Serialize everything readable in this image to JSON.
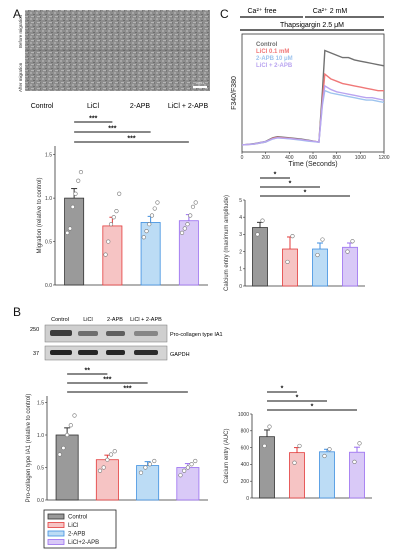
{
  "panels": {
    "a": "A",
    "b": "B",
    "c": "C"
  },
  "micrograph": {
    "row_labels": [
      "Before migration",
      "After migration"
    ],
    "scale_bar": "100 μm",
    "group_labels": [
      "Control",
      "LiCl",
      "2-APB",
      "LiCl + 2-APB"
    ]
  },
  "western": {
    "lane_labels": [
      "Control",
      "LiCl",
      "2-APB",
      "LiCl + 2-APB"
    ],
    "markers": [
      "250",
      "37"
    ],
    "bands": [
      "Pro-collagen type IA1",
      "GAPDH"
    ]
  },
  "trace": {
    "conditions": [
      "Ca²⁺ free",
      "Ca²⁺ 2 mM"
    ],
    "treatment": "Thapsigargin 2.5 μM",
    "colors": {
      "Control": "#707070",
      "LiCl": "#f07878",
      "2-APB": "#9ec4ee",
      "LiCl+2-APB": "#b9a4f0"
    }
  },
  "legend": {
    "items": [
      {
        "label": "Control",
        "color": "#9a9a9a"
      },
      {
        "label": "LiCl",
        "color": "#f6c4c4"
      },
      {
        "label": "2-APB",
        "color": "#bcdcf5"
      },
      {
        "label": "LiCl+2-APB",
        "color": "#d9c9f7"
      }
    ]
  },
  "chart_data": [
    {
      "type": "line",
      "panel": "C",
      "xlabel": "Time (Seconds)",
      "ylabel": "F340/F380",
      "x_ticks": [
        0,
        200,
        400,
        600,
        800,
        1000,
        1200
      ],
      "xlim": [
        0,
        1200
      ],
      "ylim": [
        0,
        5
      ],
      "series": [
        {
          "name": "Control",
          "x": [
            0,
            100,
            200,
            260,
            300,
            400,
            500,
            560,
            620,
            650,
            680,
            700,
            750,
            800,
            850,
            900,
            950,
            1000,
            1050,
            1100,
            1150,
            1200
          ],
          "y": [
            0.3,
            0.35,
            0.45,
            0.6,
            0.65,
            0.6,
            0.55,
            0.5,
            0.45,
            0.42,
            2.6,
            4.3,
            4.2,
            4.1,
            4.0,
            4.0,
            3.9,
            3.85,
            3.8,
            3.75,
            3.7,
            3.65
          ]
        },
        {
          "name": "LiCl 0.1 mM",
          "x": [
            0,
            100,
            200,
            260,
            300,
            400,
            500,
            560,
            620,
            650,
            680,
            700,
            750,
            800,
            850,
            900,
            950,
            1000,
            1050,
            1100,
            1150,
            1200
          ],
          "y": [
            0.3,
            0.33,
            0.42,
            0.58,
            0.62,
            0.58,
            0.52,
            0.48,
            0.44,
            0.42,
            2.2,
            3.3,
            3.1,
            3.0,
            2.9,
            2.85,
            2.8,
            2.75,
            2.7,
            2.65,
            2.6,
            2.6
          ]
        },
        {
          "name": "2-APB 10 μM",
          "x": [
            0,
            100,
            200,
            260,
            300,
            400,
            500,
            560,
            620,
            650,
            680,
            700,
            750,
            800,
            850,
            900,
            950,
            1000,
            1050,
            1100,
            1150,
            1200
          ],
          "y": [
            0.3,
            0.33,
            0.42,
            0.55,
            0.6,
            0.56,
            0.5,
            0.46,
            0.43,
            0.41,
            2.0,
            2.6,
            2.5,
            2.45,
            2.4,
            2.35,
            2.3,
            2.25,
            2.2,
            2.2,
            2.15,
            2.1
          ]
        },
        {
          "name": "LiCl + 2-APB",
          "x": [
            0,
            100,
            200,
            260,
            300,
            400,
            500,
            560,
            620,
            650,
            680,
            700,
            750,
            800,
            850,
            900,
            950,
            1000,
            1050,
            1100,
            1150,
            1200
          ],
          "y": [
            0.3,
            0.34,
            0.44,
            0.56,
            0.6,
            0.57,
            0.52,
            0.48,
            0.44,
            0.42,
            2.1,
            2.8,
            2.65,
            2.55,
            2.5,
            2.45,
            2.4,
            2.35,
            2.3,
            2.3,
            2.25,
            2.2
          ]
        }
      ]
    },
    {
      "type": "bar",
      "panel": "A",
      "categories": [
        "Control",
        "LiCl",
        "2-APB",
        "LiCl + 2-APB"
      ],
      "values": [
        1.0,
        0.68,
        0.72,
        0.74
      ],
      "errors": [
        0.11,
        0.1,
        0.07,
        0.07
      ],
      "points": [
        [
          0.6,
          0.65,
          0.9,
          1.05,
          1.2,
          1.3
        ],
        [
          0.35,
          0.5,
          0.7,
          0.78,
          0.85,
          1.05
        ],
        [
          0.55,
          0.62,
          0.7,
          0.8,
          0.88,
          0.95
        ],
        [
          0.6,
          0.65,
          0.7,
          0.8,
          0.9,
          0.95
        ]
      ],
      "ylabel": "Migration (relative to control)",
      "ylim": [
        0,
        1.6
      ],
      "y_ticks": [
        "0.0",
        "0.5",
        "1.0",
        "1.5"
      ],
      "significance": [
        "***",
        "***",
        "***"
      ]
    },
    {
      "type": "bar",
      "panel": "C",
      "categories": [
        "Control",
        "LiCl",
        "2-APB",
        "LiCl + 2-APB"
      ],
      "values": [
        3.4,
        2.15,
        2.15,
        2.25
      ],
      "errors": [
        0.3,
        0.7,
        0.35,
        0.25
      ],
      "points": [
        [
          3.0,
          3.8
        ],
        [
          1.4,
          2.9
        ],
        [
          1.8,
          2.7
        ],
        [
          2.0,
          2.6
        ]
      ],
      "ylabel": "Calcium entry (maximum amplitude)",
      "ylim": [
        0,
        5
      ],
      "y_ticks": [
        "0",
        "1",
        "2",
        "3",
        "4",
        "5"
      ],
      "significance": [
        "*",
        "*",
        "*"
      ]
    },
    {
      "type": "bar",
      "panel": "B",
      "categories": [
        "Control",
        "LiCl",
        "2-APB",
        "LiCl+2-APB"
      ],
      "values": [
        1.0,
        0.62,
        0.53,
        0.5
      ],
      "errors": [
        0.11,
        0.07,
        0.06,
        0.06
      ],
      "points": [
        [
          0.7,
          0.8,
          1.0,
          1.15,
          1.3
        ],
        [
          0.45,
          0.5,
          0.62,
          0.7,
          0.75
        ],
        [
          0.42,
          0.5,
          0.55,
          0.6
        ],
        [
          0.38,
          0.45,
          0.5,
          0.55,
          0.6
        ]
      ],
      "ylabel": "Pro-collagen type IA1 (relative to control)",
      "ylim": [
        0,
        1.6
      ],
      "y_ticks": [
        "0.0",
        "0.5",
        "1.0",
        "1.5"
      ],
      "significance": [
        "**",
        "***",
        "***"
      ]
    },
    {
      "type": "bar",
      "panel": "C",
      "categories": [
        "Control",
        "LiCl",
        "2-APB",
        "LiCl+2-APB"
      ],
      "values": [
        730,
        540,
        550,
        545
      ],
      "errors": [
        80,
        60,
        30,
        60
      ],
      "points": [
        [
          620,
          850
        ],
        [
          420,
          620
        ],
        [
          500,
          580
        ],
        [
          430,
          650
        ]
      ],
      "ylabel": "Calcium entry (AUC)",
      "ylim": [
        0,
        1000
      ],
      "y_ticks": [
        "0",
        "200",
        "400",
        "600",
        "800",
        "1000"
      ],
      "significance": [
        "*",
        "*",
        "*"
      ]
    }
  ]
}
